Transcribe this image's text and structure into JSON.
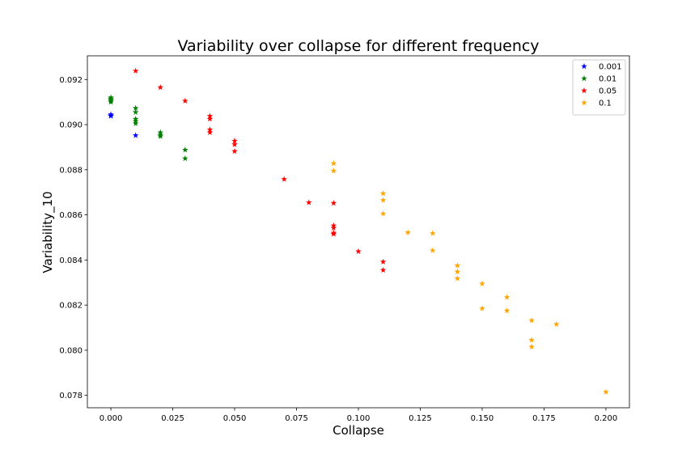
{
  "chart_data": {
    "type": "scatter",
    "title": "Variability over collapse for different frequency",
    "xlabel": "Collapse",
    "ylabel": "Variability_10",
    "xlim": [
      -0.0095,
      0.2095
    ],
    "ylim": [
      0.07745,
      0.09305
    ],
    "xticks": [
      0.0,
      0.025,
      0.05,
      0.075,
      0.1,
      0.125,
      0.15,
      0.175,
      0.2
    ],
    "xtick_labels": [
      "0.000",
      "0.025",
      "0.050",
      "0.075",
      "0.100",
      "0.125",
      "0.150",
      "0.175",
      "0.200"
    ],
    "yticks": [
      0.078,
      0.08,
      0.082,
      0.084,
      0.086,
      0.088,
      0.09,
      0.092
    ],
    "ytick_labels": [
      "0.078",
      "0.080",
      "0.082",
      "0.084",
      "0.086",
      "0.088",
      "0.090",
      "0.092"
    ],
    "marker": "star",
    "grid": false,
    "legend_position": "upper right",
    "series": [
      {
        "name": "0.001",
        "color": "#0000ff",
        "points": [
          [
            0.0,
            0.09045
          ],
          [
            0.0,
            0.0904
          ],
          [
            0.0,
            0.09038
          ],
          [
            0.01,
            0.08952
          ]
        ]
      },
      {
        "name": "0.01",
        "color": "#008000",
        "points": [
          [
            0.0,
            0.0912
          ],
          [
            0.0,
            0.09115
          ],
          [
            0.0,
            0.0911
          ],
          [
            0.0,
            0.09105
          ],
          [
            0.0,
            0.091
          ],
          [
            0.01,
            0.09073
          ],
          [
            0.01,
            0.09055
          ],
          [
            0.01,
            0.09025
          ],
          [
            0.01,
            0.09015
          ],
          [
            0.01,
            0.09005
          ],
          [
            0.02,
            0.08965
          ],
          [
            0.02,
            0.08955
          ],
          [
            0.02,
            0.08948
          ],
          [
            0.03,
            0.08888
          ],
          [
            0.03,
            0.0885
          ]
        ]
      },
      {
        "name": "0.05",
        "color": "#ff0000",
        "points": [
          [
            0.01,
            0.09238
          ],
          [
            0.02,
            0.09165
          ],
          [
            0.03,
            0.09105
          ],
          [
            0.04,
            0.09038
          ],
          [
            0.04,
            0.09025
          ],
          [
            0.04,
            0.08978
          ],
          [
            0.04,
            0.08965
          ],
          [
            0.05,
            0.08928
          ],
          [
            0.05,
            0.08912
          ],
          [
            0.05,
            0.08882
          ],
          [
            0.07,
            0.08758
          ],
          [
            0.08,
            0.08655
          ],
          [
            0.09,
            0.08652
          ],
          [
            0.09,
            0.08552
          ],
          [
            0.09,
            0.08542
          ],
          [
            0.09,
            0.0852
          ],
          [
            0.09,
            0.08515
          ],
          [
            0.1,
            0.08438
          ],
          [
            0.11,
            0.08392
          ],
          [
            0.11,
            0.08355
          ]
        ]
      },
      {
        "name": "0.1",
        "color": "#ffa500",
        "points": [
          [
            0.09,
            0.08828
          ],
          [
            0.09,
            0.08795
          ],
          [
            0.11,
            0.08695
          ],
          [
            0.11,
            0.08665
          ],
          [
            0.11,
            0.08605
          ],
          [
            0.12,
            0.08522
          ],
          [
            0.13,
            0.08518
          ],
          [
            0.13,
            0.08442
          ],
          [
            0.14,
            0.08375
          ],
          [
            0.14,
            0.08348
          ],
          [
            0.14,
            0.08318
          ],
          [
            0.15,
            0.08295
          ],
          [
            0.15,
            0.08185
          ],
          [
            0.16,
            0.08235
          ],
          [
            0.16,
            0.08175
          ],
          [
            0.17,
            0.08132
          ],
          [
            0.17,
            0.08045
          ],
          [
            0.17,
            0.08015
          ],
          [
            0.18,
            0.08115
          ],
          [
            0.2,
            0.07815
          ]
        ]
      }
    ]
  }
}
